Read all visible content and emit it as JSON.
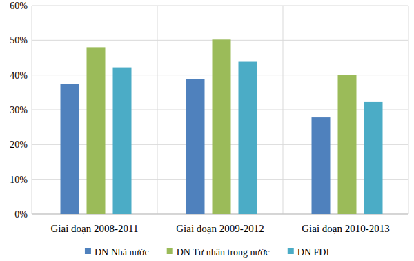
{
  "chart_data": {
    "type": "bar",
    "categories": [
      "Giai đoạn 2008-2011",
      "Giai đoạn 2009-2012",
      "Giai đoạn 2010-2013"
    ],
    "series": [
      {
        "name": "DN Nhà nước",
        "color": "#4f81bd",
        "values": [
          37.5,
          38.8,
          27.8
        ]
      },
      {
        "name": "DN Tư nhân trong nước",
        "color": "#9bbb59",
        "values": [
          48,
          50.2,
          40.1
        ]
      },
      {
        "name": "DN FDI",
        "color": "#4bacc6",
        "values": [
          42.2,
          43.8,
          32.2
        ]
      }
    ],
    "ylim": [
      0,
      60
    ],
    "yticks": [
      {
        "value": 0,
        "label": "0%"
      },
      {
        "value": 10,
        "label": "10%"
      },
      {
        "value": 20,
        "label": "20%"
      },
      {
        "value": 30,
        "label": "30%"
      },
      {
        "value": 40,
        "label": "40%"
      },
      {
        "value": 50,
        "label": "50%"
      },
      {
        "value": 60,
        "label": "60%"
      }
    ],
    "grid": true,
    "legend": "bottom"
  }
}
